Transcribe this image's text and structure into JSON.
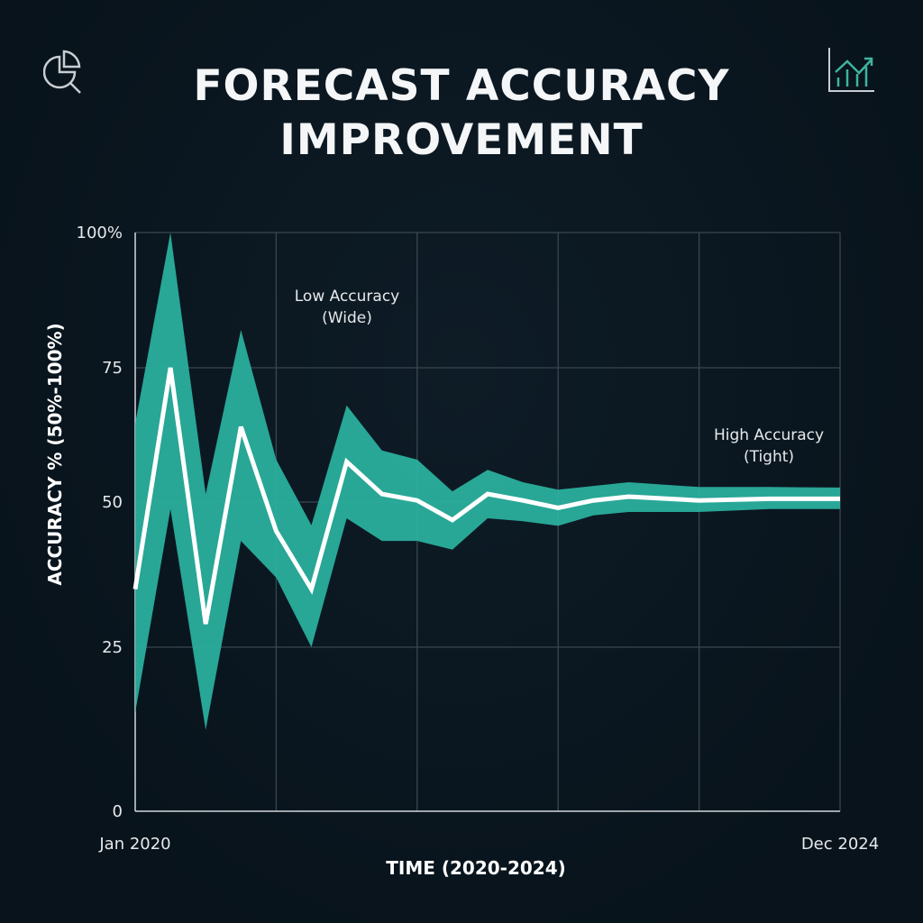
{
  "title_lines": [
    "FORECAST ACCURACY",
    "IMPROVEMENT"
  ],
  "icons": {
    "left": "pie-chart-magnifier-icon",
    "right": "growth-chart-icon"
  },
  "colors": {
    "band": "#2bb3a1",
    "line": "#ffffff",
    "grid": "#3a4650",
    "background": "#0a1620"
  },
  "chart_data": {
    "type": "area",
    "title": "FORECAST ACCURACY IMPROVEMENT",
    "xlabel": "TIME (2020-2024)",
    "ylabel": "ACCURACY % (50%-100%)",
    "x_tick_labels": [
      "Jan 2020",
      "Dec 2024"
    ],
    "y_ticks": [
      {
        "value": 0,
        "label": "0"
      },
      {
        "value": 25,
        "label": "25"
      },
      {
        "value": 50,
        "label": "50"
      },
      {
        "value": 75,
        "label": "75"
      },
      {
        "value": 100,
        "label": "100%"
      }
    ],
    "ylim": [
      0,
      100
    ],
    "xlim": [
      0,
      60
    ],
    "grid": true,
    "x": [
      0,
      3,
      6,
      9,
      12,
      15,
      18,
      21,
      24,
      27,
      30,
      33,
      36,
      39,
      42,
      48,
      54,
      60
    ],
    "series": [
      {
        "name": "Forecast accuracy",
        "values": [
          35,
          75,
          29,
          64,
          45,
          35,
          57.5,
          51.5,
          50.3,
          46.9,
          51.5,
          50.3,
          49,
          50.3,
          51,
          50.3,
          50.6,
          50.6
        ]
      },
      {
        "name": "Upper bound",
        "values": [
          64.6,
          100,
          51.5,
          82,
          57.9,
          46,
          68,
          59.6,
          57.9,
          52,
          56,
          53.7,
          52.3,
          53,
          53.7,
          52.8,
          52.8,
          52.7
        ]
      },
      {
        "name": "Lower bound",
        "values": [
          15,
          48.8,
          12.4,
          43.3,
          37,
          25,
          47.2,
          43.3,
          43.3,
          41.8,
          47.2,
          46.7,
          45.9,
          47.7,
          48.3,
          48.3,
          48.8,
          48.8
        ]
      }
    ],
    "annotations": [
      {
        "lines": [
          "Low Accuracy",
          "(Wide)"
        ],
        "at_x": 21,
        "at_y": 90
      },
      {
        "lines": [
          "High Accuracy",
          "(Tight)"
        ],
        "at_x": 54,
        "at_y": 66
      }
    ]
  }
}
